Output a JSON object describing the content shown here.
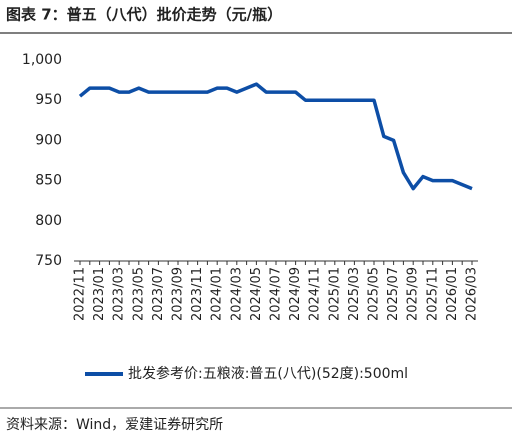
{
  "chart_data": {
    "type": "line",
    "title": "图表 7：普五（八代）批价走势（元/瓶）",
    "source": "资料来源：Wind，爱建证券研究所",
    "categories": [
      "2022/11",
      null,
      "2023/01",
      null,
      "2023/03",
      null,
      "2023/05",
      null,
      "2023/07",
      null,
      "2023/09",
      null,
      "2023/11",
      null,
      "2024/01",
      null,
      "2024/03",
      null,
      "2024/05",
      null,
      "2024/07",
      null,
      "2024/09",
      null,
      "2024/11",
      null,
      "2025/01",
      null,
      "2025/03",
      null,
      "2025/05",
      null,
      "2025/07",
      null,
      "2025/09",
      null,
      "2025/11",
      null,
      "2026/01",
      null,
      "2026/03"
    ],
    "series": [
      {
        "name": "批发参考价:五粮液:普五(八代)(52度):500ml",
        "color": "#0d4ea6",
        "values": [
          955,
          965,
          965,
          965,
          960,
          960,
          965,
          960,
          960,
          960,
          960,
          960,
          960,
          960,
          965,
          965,
          960,
          965,
          970,
          960,
          960,
          960,
          960,
          950,
          950,
          950,
          950,
          950,
          950,
          950,
          950,
          905,
          900,
          860,
          840,
          855,
          850,
          850,
          850,
          845,
          840
        ]
      }
    ],
    "ylim": [
      750,
      1000
    ],
    "yticks": [
      750,
      800,
      850,
      900,
      950,
      {
        "value": 1000,
        "label": "1,000"
      }
    ],
    "grid": false,
    "legend": "bottom"
  }
}
